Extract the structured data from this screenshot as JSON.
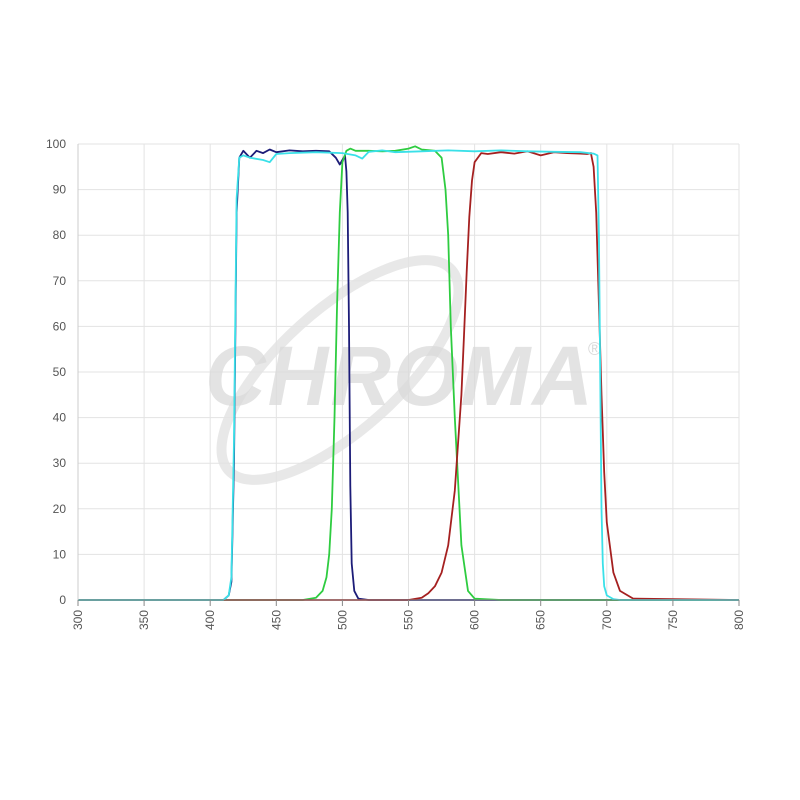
{
  "watermark": {
    "text": "CHROMA",
    "registered": "®"
  },
  "chart_data": {
    "type": "line",
    "title": "",
    "xlabel": "",
    "ylabel": "",
    "xlim": [
      300,
      800
    ],
    "ylim": [
      0,
      100
    ],
    "x_ticks": [
      300,
      350,
      400,
      450,
      500,
      550,
      600,
      650,
      700,
      750,
      800
    ],
    "y_ticks": [
      0,
      10,
      20,
      30,
      40,
      50,
      60,
      70,
      80,
      90,
      100
    ],
    "grid": true,
    "legend": "none",
    "series": [
      {
        "color": "#1c1c78",
        "x": [
          300,
          410,
          414,
          416,
          418,
          420,
          422,
          425,
          430,
          435,
          440,
          445,
          450,
          460,
          470,
          480,
          490,
          495,
          498,
          500,
          502,
          503,
          504,
          505,
          506,
          507,
          509,
          512,
          520,
          800
        ],
        "y": [
          0,
          0,
          1,
          4,
          30,
          85,
          97,
          98.5,
          97,
          98.5,
          98,
          98.8,
          98.2,
          98.6,
          98.4,
          98.5,
          98.4,
          97,
          95.5,
          96.5,
          97.5,
          94,
          85,
          60,
          25,
          8,
          2,
          0.3,
          0,
          0
        ]
      },
      {
        "color": "#2ecc40",
        "x": [
          300,
          470,
          480,
          485,
          488,
          490,
          492,
          494,
          496,
          498,
          500,
          503,
          506,
          510,
          520,
          530,
          540,
          550,
          555,
          560,
          570,
          575,
          578,
          580,
          582,
          585,
          590,
          595,
          600,
          620,
          800
        ],
        "y": [
          0,
          0,
          0.5,
          2,
          5,
          10,
          20,
          40,
          65,
          85,
          96,
          98.5,
          99,
          98.5,
          98.5,
          98.4,
          98.5,
          99,
          99.5,
          98.8,
          98.5,
          97,
          90,
          80,
          60,
          40,
          12,
          2,
          0.3,
          0,
          0
        ]
      },
      {
        "color": "#a52020",
        "x": [
          300,
          550,
          560,
          565,
          570,
          575,
          580,
          585,
          590,
          592,
          594,
          596,
          598,
          600,
          605,
          610,
          620,
          630,
          640,
          650,
          660,
          670,
          680,
          685,
          688,
          690,
          692,
          694,
          696,
          698,
          700,
          705,
          710,
          720,
          800
        ],
        "y": [
          0,
          0,
          0.5,
          1.5,
          3,
          6,
          12,
          24,
          45,
          58,
          72,
          84,
          92,
          96,
          98,
          97.8,
          98.2,
          97.9,
          98.4,
          97.5,
          98.2,
          98,
          97.9,
          97.8,
          98,
          95,
          85,
          65,
          45,
          28,
          17,
          6,
          2,
          0.3,
          0
        ]
      },
      {
        "color": "#3ae0e8",
        "x": [
          300,
          410,
          414,
          416,
          418,
          420,
          422,
          425,
          430,
          440,
          445,
          450,
          460,
          480,
          500,
          510,
          515,
          520,
          530,
          540,
          560,
          580,
          600,
          620,
          640,
          660,
          680,
          690,
          693,
          694,
          695,
          696,
          697,
          698,
          700,
          705,
          710,
          800
        ],
        "y": [
          0,
          0,
          1,
          5,
          35,
          88,
          97,
          97.5,
          97,
          96.5,
          96,
          97.8,
          98,
          98.2,
          98,
          97.5,
          96.8,
          98.3,
          98.6,
          98.2,
          98.4,
          98.6,
          98.4,
          98.6,
          98.4,
          98.3,
          98.2,
          97.9,
          97.5,
          80,
          50,
          20,
          8,
          3,
          1,
          0.2,
          0,
          0
        ]
      }
    ]
  }
}
